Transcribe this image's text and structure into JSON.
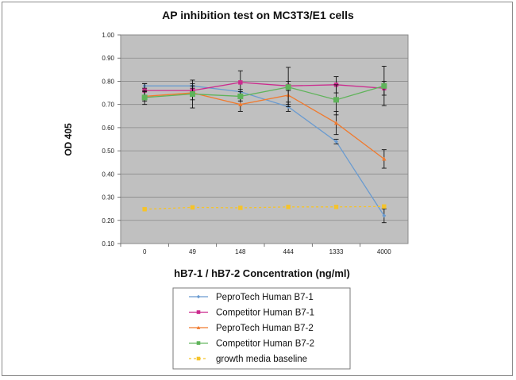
{
  "chart_data": {
    "type": "line",
    "title": "AP inhibition test on MC3T3/E1 cells",
    "xlabel": "hB7-1 / hB7-2 Concentration (ng/ml)",
    "ylabel": "OD 405",
    "ylim": [
      0.1,
      1.0
    ],
    "yticks": [
      "0.10",
      "0.20",
      "0.30",
      "0.40",
      "0.50",
      "0.60",
      "0.70",
      "0.80",
      "0.90",
      "1.00"
    ],
    "categories": [
      "0",
      "49",
      "148",
      "444",
      "1333",
      "4000"
    ],
    "grid": true,
    "legend_position": "bottom",
    "series": [
      {
        "name": "PeproTech Human B7-1",
        "color": "#6a9bd0",
        "marker": "diamond",
        "dashed": false,
        "values": [
          0.78,
          0.78,
          0.755,
          0.69,
          0.54,
          0.22
        ],
        "errors": [
          0.01,
          0.01,
          0.01,
          0.02,
          0.01,
          0.03
        ]
      },
      {
        "name": "Competitor Human B7-1",
        "color": "#cc2a8e",
        "marker": "square",
        "dashed": false,
        "values": [
          0.76,
          0.76,
          0.795,
          0.78,
          0.785,
          0.77
        ],
        "errors": [
          0.03,
          0.02,
          0.05,
          0.02,
          0.035,
          0.03
        ]
      },
      {
        "name": "PeproTech Human B7-2",
        "color": "#f07a2e",
        "marker": "triangle",
        "dashed": false,
        "values": [
          0.735,
          0.75,
          0.7,
          0.74,
          0.62,
          0.465
        ],
        "errors": [
          0.02,
          0.03,
          0.03,
          0.04,
          0.05,
          0.04
        ]
      },
      {
        "name": "Competitor Human B7-2",
        "color": "#5fb35a",
        "marker": "square",
        "dashed": false,
        "values": [
          0.73,
          0.745,
          0.735,
          0.775,
          0.72,
          0.78
        ],
        "errors": [
          0.03,
          0.06,
          0.02,
          0.085,
          0.065,
          0.085
        ]
      },
      {
        "name": "growth media baseline",
        "color": "#f5c32a",
        "marker": "square",
        "dashed": true,
        "values": [
          0.248,
          0.256,
          0.254,
          0.258,
          0.258,
          0.26
        ],
        "errors": [
          0,
          0,
          0,
          0,
          0,
          0
        ]
      }
    ]
  }
}
